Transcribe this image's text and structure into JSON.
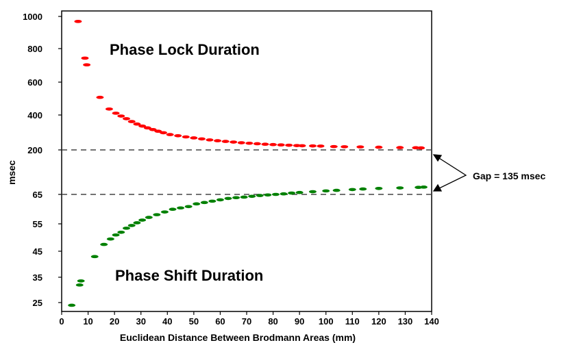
{
  "chart_data": {
    "type": "scatter",
    "xlabel": "Euclidean Distance Between Brodmann Areas (mm)",
    "ylabel": "msec",
    "x_ticks": [
      "0",
      "10",
      "20",
      "30",
      "40",
      "50",
      "60",
      "70",
      "80",
      "90",
      "100",
      "110",
      "120",
      "130",
      "140"
    ],
    "y_ticks": [
      "1000",
      "800",
      "600",
      "400",
      "200",
      "65",
      "55",
      "45",
      "35",
      "25"
    ],
    "xlim": [
      0,
      140
    ],
    "grid": false,
    "reference_lines": [
      {
        "y_label": "200",
        "style": "dashed"
      },
      {
        "y_label": "65",
        "style": "dashed"
      }
    ],
    "annotations": {
      "top": "Phase Lock Duration",
      "bottom": "Phase Shift Duration",
      "gap": "Gap = 135 msec"
    },
    "series": [
      {
        "color": "#ff0000",
        "points": [
          [
            6.2,
            970
          ],
          [
            8.8,
            750
          ],
          [
            9.5,
            710
          ],
          [
            14.5,
            515
          ],
          [
            18,
            445
          ],
          [
            20.5,
            420
          ],
          [
            22.5,
            403
          ],
          [
            24.5,
            387
          ],
          [
            26.5,
            370
          ],
          [
            28.5,
            355
          ],
          [
            30.5,
            343
          ],
          [
            32.5,
            332
          ],
          [
            34.5,
            322
          ],
          [
            36.5,
            312
          ],
          [
            38.5,
            303
          ],
          [
            41,
            292
          ],
          [
            44,
            285
          ],
          [
            47,
            278
          ],
          [
            50,
            272
          ],
          [
            53,
            266
          ],
          [
            56,
            260
          ],
          [
            59,
            255
          ],
          [
            62,
            251
          ],
          [
            65,
            247
          ],
          [
            68,
            243
          ],
          [
            71,
            240
          ],
          [
            74,
            237
          ],
          [
            77,
            234
          ],
          [
            80,
            232
          ],
          [
            83,
            230
          ],
          [
            86,
            228
          ],
          [
            89,
            226
          ],
          [
            91,
            225
          ],
          [
            95,
            224
          ],
          [
            98,
            223
          ],
          [
            103,
            220
          ],
          [
            107,
            219
          ],
          [
            113,
            218
          ],
          [
            120,
            216
          ],
          [
            128,
            214
          ],
          [
            134,
            213
          ],
          [
            136,
            212
          ]
        ]
      },
      {
        "color": "#008000",
        "points": [
          [
            3.8,
            24
          ],
          [
            6.8,
            31.5
          ],
          [
            7.3,
            33
          ],
          [
            12.5,
            42
          ],
          [
            16,
            46.5
          ],
          [
            18.5,
            48.5
          ],
          [
            20.5,
            50
          ],
          [
            22.5,
            51
          ],
          [
            24.5,
            52.5
          ],
          [
            26.5,
            53.5
          ],
          [
            28.5,
            54.5
          ],
          [
            30.5,
            55.5
          ],
          [
            33,
            56.5
          ],
          [
            36,
            57.5
          ],
          [
            39,
            58.5
          ],
          [
            42,
            59.5
          ],
          [
            45,
            60
          ],
          [
            48,
            60.5
          ],
          [
            51,
            61.5
          ],
          [
            54,
            62
          ],
          [
            57,
            62.5
          ],
          [
            60,
            63
          ],
          [
            63,
            63.5
          ],
          [
            66,
            63.8
          ],
          [
            69,
            64
          ],
          [
            72,
            64.3
          ],
          [
            75,
            64.6
          ],
          [
            78,
            64.8
          ],
          [
            81,
            65
          ],
          [
            84,
            65.2
          ],
          [
            87,
            65.5
          ],
          [
            90,
            65.7
          ],
          [
            95,
            66
          ],
          [
            100,
            66.3
          ],
          [
            104,
            66.5
          ],
          [
            110,
            66.8
          ],
          [
            114,
            67
          ],
          [
            120,
            67.2
          ],
          [
            128,
            67.4
          ],
          [
            135,
            67.6
          ],
          [
            137,
            67.7
          ]
        ]
      }
    ]
  }
}
